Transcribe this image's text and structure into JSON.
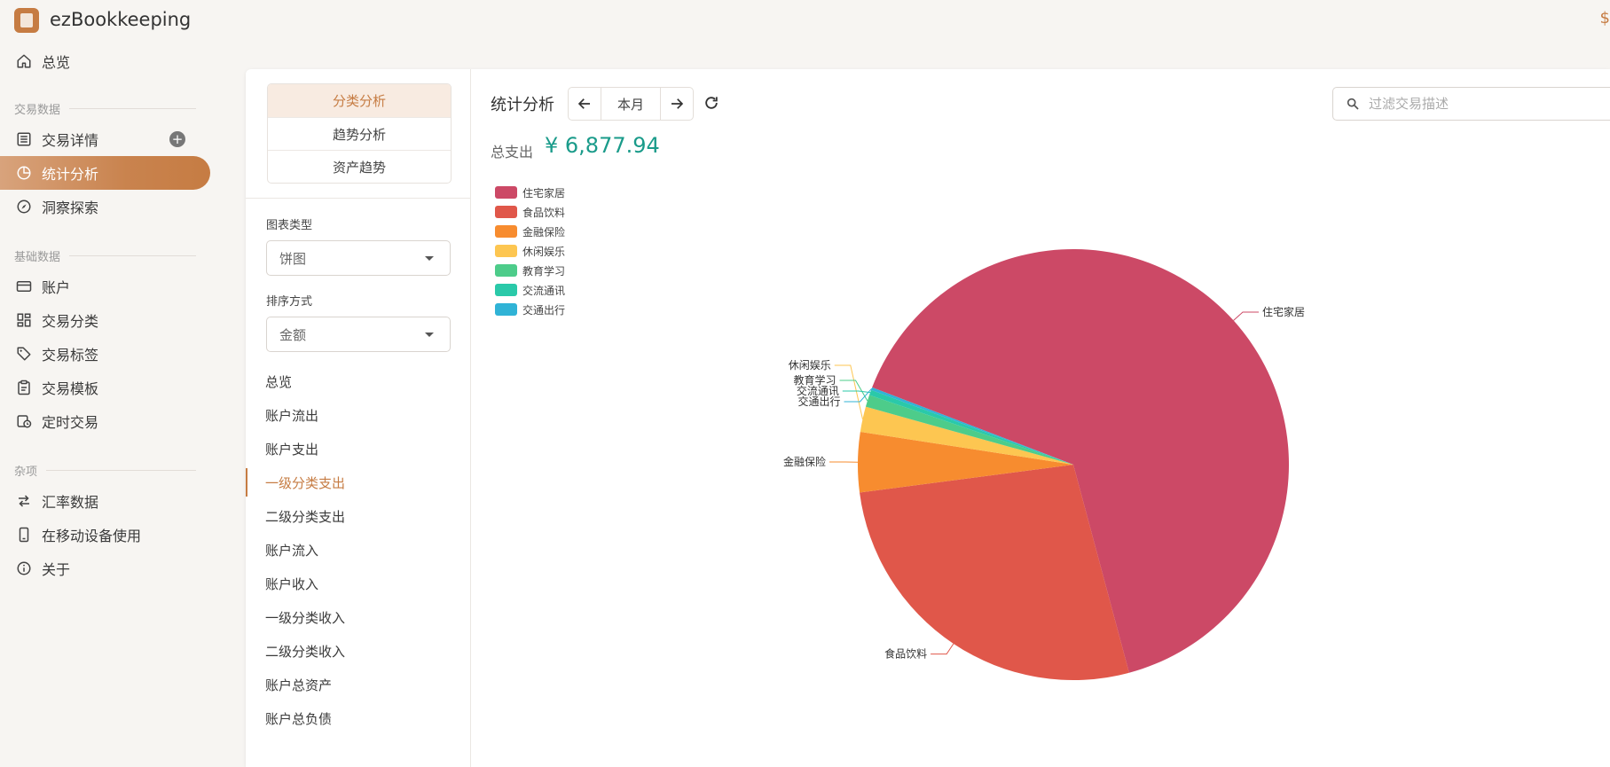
{
  "app": {
    "title": "ezBookkeeping",
    "edge_mark": "$"
  },
  "sidebar": {
    "overview": "总览",
    "section_transactions": "交易数据",
    "transaction_details": "交易详情",
    "statistics": "统计分析",
    "insights": "洞察探索",
    "section_basic": "基础数据",
    "accounts": "账户",
    "categories": "交易分类",
    "tags": "交易标签",
    "templates": "交易模板",
    "scheduled": "定时交易",
    "section_misc": "杂项",
    "exchange_rates": "汇率数据",
    "mobile": "在移动设备使用",
    "about": "关于"
  },
  "analysis_tabs": [
    "分类分析",
    "趋势分析",
    "资产趋势"
  ],
  "chart_type": {
    "label": "图表类型",
    "value": "饼图"
  },
  "sort_by": {
    "label": "排序方式",
    "value": "金额"
  },
  "stat_items": [
    "总览",
    "账户流出",
    "账户支出",
    "一级分类支出",
    "二级分类支出",
    "账户流入",
    "账户收入",
    "一级分类收入",
    "二级分类收入",
    "账户总资产",
    "账户总负债"
  ],
  "active_stat_index": 3,
  "content": {
    "title": "统计分析",
    "period": "本月",
    "total_label": "总支出",
    "total_amount": "¥ 6,877.94",
    "search_placeholder": "过滤交易描述"
  },
  "chart_data": {
    "type": "pie",
    "unit": "percent",
    "legend_position": "top-left",
    "slices": [
      {
        "name": "住宅家居",
        "value": 65.0,
        "color": "#cc4966"
      },
      {
        "name": "食品饮料",
        "value": 27.1,
        "color": "#e0574a"
      },
      {
        "name": "金融保险",
        "value": 4.5,
        "color": "#f78c2f"
      },
      {
        "name": "休闲娱乐",
        "value": 1.9,
        "color": "#fdc651"
      },
      {
        "name": "教育学习",
        "value": 0.9,
        "color": "#4dcc8a"
      },
      {
        "name": "交流通讯",
        "value": 0.4,
        "color": "#2ac9a9"
      },
      {
        "name": "交通出行",
        "value": 0.2,
        "color": "#30b3d6"
      }
    ]
  }
}
